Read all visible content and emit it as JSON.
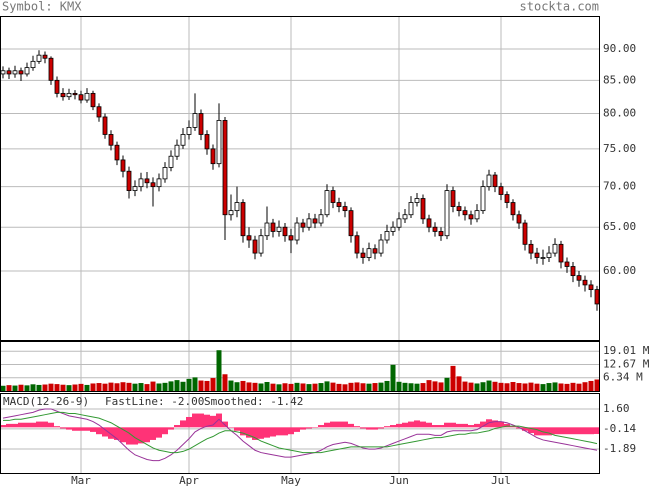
{
  "chart_data": {
    "type": "candlestick",
    "title": "Symbol: KMX",
    "source": "stockta.com",
    "log_scale": true,
    "grid": true,
    "up_color": "#ffffff",
    "down_color": "#cc0000",
    "ylim": [
      52.9,
      95.6
    ],
    "yticks": [
      {
        "value": 90,
        "label": "90.00"
      },
      {
        "value": 85,
        "label": "85.00"
      },
      {
        "value": 80,
        "label": "80.00"
      },
      {
        "value": 75,
        "label": "75.00"
      },
      {
        "value": 70,
        "label": "70.00"
      },
      {
        "value": 65,
        "label": "65.00"
      },
      {
        "value": 60,
        "label": "60.00"
      }
    ],
    "xticks": [
      {
        "value": 13,
        "label": "Mar"
      },
      {
        "value": 31,
        "label": "Apr"
      },
      {
        "value": 48,
        "label": "May"
      },
      {
        "value": 66,
        "label": "Jun"
      },
      {
        "value": 83,
        "label": "Jul"
      }
    ],
    "open": [
      86,
      86.5,
      86,
      86.5,
      86,
      87,
      88,
      89,
      88.5,
      85,
      83,
      82.5,
      83,
      82.8,
      82,
      83,
      81,
      79.5,
      77,
      75.5,
      73.5,
      72,
      69.5,
      70,
      71,
      70.5,
      70,
      71,
      72.5,
      74,
      75.5,
      77,
      78,
      80,
      77,
      75,
      73,
      79,
      66.5,
      67,
      68,
      64,
      63.5,
      62,
      64,
      65.5,
      64.5,
      65,
      64,
      63.5,
      65.5,
      65,
      66,
      65.5,
      66.5,
      69.5,
      68,
      67.5,
      67,
      64,
      62,
      61.5,
      62.5,
      62,
      63.5,
      64.5,
      65,
      66,
      66.5,
      68,
      68.5,
      66,
      65,
      64.5,
      64,
      69.5,
      67.5,
      67,
      66.5,
      66,
      67,
      70,
      71.5,
      70,
      69,
      68,
      66.5,
      65.5,
      63,
      62,
      61.5,
      61.5,
      62,
      63,
      61,
      60.5,
      59.5,
      59,
      58.5,
      58
    ],
    "high": [
      87.2,
      87,
      87.3,
      87,
      87.8,
      88.9,
      89.8,
      89.6,
      88.8,
      85.6,
      83.8,
      83.7,
      83.5,
      83.4,
      83.8,
      83.4,
      81.5,
      80,
      77.6,
      76,
      74.1,
      72.6,
      70.8,
      71.8,
      71.9,
      71.2,
      71.7,
      73.2,
      74.8,
      76.3,
      77.9,
      79,
      83,
      80.6,
      77.6,
      75.6,
      81.5,
      79.5,
      69,
      70,
      68.4,
      65,
      64,
      64.8,
      67.5,
      66,
      65.8,
      65.5,
      64.8,
      66.2,
      66,
      66.7,
      66.6,
      67.2,
      70.3,
      70,
      68.6,
      68.1,
      67.4,
      64.5,
      62.6,
      63.2,
      63,
      64.2,
      65.3,
      65.7,
      66.8,
      67.2,
      68.8,
      69.2,
      69,
      66.5,
      65.6,
      65,
      70.3,
      70,
      68.1,
      67.5,
      67,
      67.8,
      70.8,
      72.2,
      71.9,
      70.5,
      69.4,
      68.4,
      67,
      65.9,
      63.5,
      62.6,
      62.4,
      62.8,
      63.7,
      63.4,
      61.5,
      61,
      60,
      59.5,
      59,
      58.4
    ],
    "low": [
      85.3,
      85.2,
      85.4,
      84.9,
      85.6,
      86.5,
      87.6,
      87.7,
      84.3,
      82.4,
      81.9,
      82,
      82.1,
      81.5,
      81.6,
      80.5,
      78.8,
      76.4,
      74.8,
      72.8,
      71.2,
      68.5,
      68.8,
      69.4,
      69.8,
      67.5,
      69.4,
      70.5,
      72,
      73.5,
      75,
      76.3,
      77.5,
      76.2,
      74.2,
      72.2,
      72.5,
      63.5,
      65.8,
      66.2,
      63.2,
      62.6,
      61.3,
      61.6,
      63.5,
      63.8,
      63.9,
      63.3,
      62,
      63,
      64.4,
      64.6,
      64.9,
      65.1,
      66.2,
      67.3,
      66.8,
      66.2,
      63.2,
      61.4,
      60.8,
      61.1,
      61.3,
      61.6,
      63.1,
      64,
      64.6,
      65.5,
      66.1,
      67.5,
      65.4,
      64.4,
      63.9,
      63.4,
      63.6,
      66.8,
      66.3,
      65.8,
      65.3,
      65.6,
      66.6,
      69.5,
      69.3,
      68.3,
      67.3,
      65.8,
      64.8,
      62.3,
      61.3,
      60.8,
      60.7,
      61,
      61.6,
      60.3,
      59.8,
      58.8,
      58.3,
      57.8,
      57.2,
      55.8
    ],
    "close": [
      86.5,
      86,
      86.5,
      86,
      87,
      88,
      89,
      88.5,
      85,
      83,
      82.5,
      83,
      82.8,
      82,
      83,
      81,
      79.5,
      77,
      75.5,
      73.5,
      72,
      69.5,
      70,
      71,
      70.5,
      70,
      71,
      72.5,
      74,
      75.5,
      77,
      78,
      80,
      77,
      75,
      73,
      79,
      66.5,
      67,
      68,
      64,
      63.5,
      62,
      64,
      65.5,
      64.5,
      65,
      64,
      63.5,
      65.5,
      65,
      66,
      65.5,
      66.5,
      69.5,
      68,
      67.5,
      67,
      64,
      62,
      61.5,
      62.5,
      62,
      63.5,
      64.5,
      65,
      66,
      66.5,
      68,
      68.5,
      66,
      65,
      64.5,
      64,
      69.5,
      67.5,
      67,
      66.5,
      66,
      67,
      70,
      71.5,
      70,
      69,
      68,
      66.5,
      65.5,
      63,
      62,
      61.5,
      61.5,
      62,
      63,
      61,
      60.5,
      59.5,
      59,
      58.5,
      58,
      56.5
    ],
    "volume": {
      "up_color": "#006600",
      "down_color": "#cc0000",
      "ylim": [
        0,
        23.9
      ],
      "yticks": [
        {
          "value": 19.01,
          "label": "19.01 M"
        },
        {
          "value": 12.67,
          "label": "12.67 M"
        },
        {
          "value": 6.34,
          "label": "6.34 M"
        }
      ],
      "values": [
        2.5,
        2.8,
        2.6,
        3,
        2.7,
        3.2,
        2.9,
        3.1,
        3.5,
        3.3,
        3,
        2.8,
        3.1,
        3.4,
        2.9,
        3.6,
        3.8,
        3.5,
        4,
        3.7,
        4.2,
        3.9,
        3.5,
        3.8,
        3.3,
        4.5,
        3.6,
        3.9,
        4.6,
        5.2,
        4.4,
        5.8,
        6.5,
        5,
        4.8,
        6.2,
        19.5,
        8,
        5,
        4.2,
        4.8,
        4.1,
        3.9,
        3.6,
        4.3,
        3.5,
        3.2,
        3.7,
        3.4,
        3.9,
        3.6,
        3.3,
        3.5,
        3.8,
        4.6,
        4,
        3.4,
        3.2,
        3.9,
        4.1,
        3.7,
        3.5,
        3.8,
        4,
        4.8,
        12.5,
        4.4,
        3.9,
        3.7,
        3.5,
        3.8,
        5.2,
        4.6,
        4.1,
        6.3,
        12,
        7,
        4.5,
        4,
        3.6,
        4.2,
        5,
        4.4,
        3.9,
        3.7,
        4.3,
        3.8,
        3.6,
        4,
        3.5,
        3.3,
        3.8,
        4.1,
        3.6,
        3.4,
        3.9,
        3.5,
        4.2,
        4.8,
        5.5
      ]
    },
    "macd": {
      "title": "MACD(12-26-9)",
      "ylim": [
        -3.98,
        2.99
      ],
      "yticks": [
        {
          "value": 1.6,
          "label": "1.60"
        },
        -0.14,
        -1.89
      ],
      "histogram_color": "#ff3377",
      "histogram": [
        0.2,
        0.3,
        0.3,
        0.4,
        0.4,
        0.4,
        0.5,
        0.5,
        0.4,
        0.1,
        -0.1,
        -0.2,
        -0.3,
        -0.3,
        -0.3,
        -0.4,
        -0.6,
        -0.8,
        -1.0,
        -1.1,
        -1.3,
        -1.5,
        -1.5,
        -1.4,
        -1.3,
        -1.1,
        -0.9,
        -0.6,
        -0.2,
        0.2,
        0.6,
        0.9,
        1.2,
        1.2,
        1.1,
        1.0,
        1.2,
        0.5,
        0.0,
        -0.3,
        -0.7,
        -0.9,
        -1.1,
        -1.0,
        -0.9,
        -0.8,
        -0.7,
        -0.7,
        -0.6,
        -0.4,
        -0.2,
        -0.1,
        0.0,
        0.2,
        0.4,
        0.5,
        0.5,
        0.5,
        0.3,
        0.1,
        -0.1,
        -0.2,
        -0.2,
        -0.1,
        0.1,
        0.2,
        0.3,
        0.4,
        0.5,
        0.6,
        0.5,
        0.4,
        0.2,
        0.2,
        0.4,
        0.4,
        0.3,
        0.3,
        0.2,
        0.3,
        0.5,
        0.7,
        0.6,
        0.5,
        0.3,
        0.1,
        -0.1,
        -0.3,
        -0.5,
        -0.7,
        -0.7,
        -0.7,
        -0.6,
        -0.6,
        -0.6,
        -0.6,
        -0.6,
        -0.6,
        -0.6,
        -0.58
      ],
      "series": [
        {
          "name": "FastLine: -2.00",
          "color": "#993399",
          "values": [
            0.8,
            0.9,
            1.0,
            1.1,
            1.2,
            1.3,
            1.5,
            1.6,
            1.6,
            1.4,
            1.2,
            1.0,
            0.9,
            0.8,
            0.7,
            0.5,
            0.2,
            -0.2,
            -0.6,
            -1.0,
            -1.5,
            -2.0,
            -2.4,
            -2.6,
            -2.8,
            -2.9,
            -2.9,
            -2.7,
            -2.4,
            -2.0,
            -1.5,
            -1.0,
            -0.4,
            -0.1,
            0.1,
            0.2,
            0.7,
            0.2,
            -0.3,
            -0.7,
            -1.2,
            -1.6,
            -2.0,
            -2.2,
            -2.3,
            -2.4,
            -2.5,
            -2.6,
            -2.6,
            -2.5,
            -2.4,
            -2.3,
            -2.2,
            -2.0,
            -1.7,
            -1.5,
            -1.4,
            -1.3,
            -1.4,
            -1.6,
            -1.8,
            -1.9,
            -1.9,
            -1.8,
            -1.6,
            -1.4,
            -1.2,
            -1.0,
            -0.8,
            -0.6,
            -0.6,
            -0.6,
            -0.7,
            -0.7,
            -0.4,
            -0.3,
            -0.3,
            -0.3,
            -0.3,
            -0.2,
            0.1,
            0.4,
            0.5,
            0.5,
            0.4,
            0.2,
            0.0,
            -0.3,
            -0.6,
            -0.9,
            -1.1,
            -1.2,
            -1.3,
            -1.4,
            -1.5,
            -1.6,
            -1.7,
            -1.8,
            -1.9,
            -2.0
          ]
        },
        {
          "name": "Smoothed: -1.42",
          "color": "#339933",
          "values": [
            0.6,
            0.6,
            0.7,
            0.7,
            0.8,
            0.9,
            1.0,
            1.1,
            1.2,
            1.3,
            1.3,
            1.2,
            1.2,
            1.1,
            1.0,
            0.9,
            0.8,
            0.6,
            0.4,
            0.1,
            -0.2,
            -0.5,
            -0.9,
            -1.2,
            -1.5,
            -1.8,
            -2.0,
            -2.1,
            -2.2,
            -2.2,
            -2.1,
            -1.9,
            -1.6,
            -1.3,
            -1.0,
            -0.8,
            -0.5,
            -0.3,
            -0.3,
            -0.4,
            -0.5,
            -0.7,
            -0.9,
            -1.2,
            -1.4,
            -1.6,
            -1.8,
            -1.9,
            -2.0,
            -2.1,
            -2.2,
            -2.2,
            -2.2,
            -2.2,
            -2.1,
            -2.0,
            -1.9,
            -1.8,
            -1.7,
            -1.7,
            -1.7,
            -1.7,
            -1.7,
            -1.7,
            -1.7,
            -1.6,
            -1.5,
            -1.4,
            -1.3,
            -1.2,
            -1.1,
            -1.0,
            -0.9,
            -0.9,
            -0.8,
            -0.7,
            -0.6,
            -0.6,
            -0.5,
            -0.5,
            -0.4,
            -0.3,
            -0.1,
            0.0,
            0.1,
            0.1,
            0.1,
            0.0,
            -0.1,
            -0.2,
            -0.4,
            -0.5,
            -0.7,
            -0.8,
            -0.9,
            -1.0,
            -1.1,
            -1.2,
            -1.3,
            -1.42
          ]
        }
      ]
    }
  }
}
